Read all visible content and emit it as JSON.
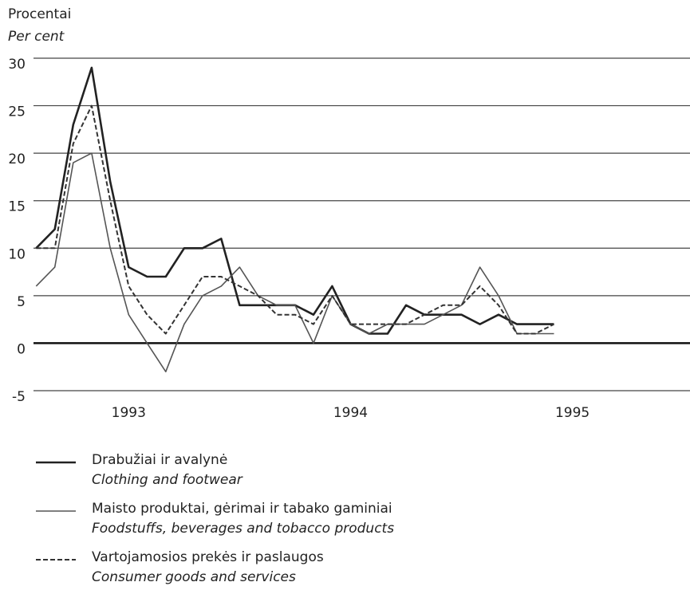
{
  "chart_data": {
    "type": "line",
    "y_label": "Procentai",
    "y_label_en": "Per cent",
    "x": [
      1992.583,
      1992.667,
      1992.75,
      1992.833,
      1992.917,
      1993.0,
      1993.083,
      1993.167,
      1993.25,
      1993.333,
      1993.417,
      1993.5,
      1993.583,
      1993.667,
      1993.75,
      1993.833,
      1993.917,
      1994.0,
      1994.083,
      1994.167,
      1994.25,
      1994.333,
      1994.417,
      1994.5,
      1994.583,
      1994.667,
      1994.75,
      1994.833,
      1994.917
    ],
    "series": [
      {
        "name": "Drabužiai ir avalynė",
        "name_en": "Clothing and footwear",
        "color": "#222222",
        "style": "thick",
        "values": [
          10,
          12,
          23,
          29,
          17,
          8,
          7,
          7,
          10,
          10,
          11,
          4,
          4,
          4,
          4,
          3,
          6,
          2,
          1,
          1,
          4,
          3,
          3,
          3,
          2,
          3,
          2,
          2,
          2
        ]
      },
      {
        "name": "Maisto produktai, gėrimai ir tabako gaminiai",
        "name_en": "Foodstuffs, beverages and tobacco products",
        "color": "#555555",
        "style": "thin",
        "values": [
          6,
          8,
          19,
          20,
          10,
          3,
          0,
          -3,
          2,
          5,
          6,
          8,
          5,
          4,
          4,
          0,
          5,
          2,
          1,
          2,
          2,
          2,
          3,
          4,
          8,
          5,
          1,
          1,
          1
        ]
      },
      {
        "name": "Vartojamosios prekės ir paslaugos",
        "name_en": "Consumer goods and services",
        "color": "#333333",
        "style": "dashed",
        "values": [
          10,
          10,
          21,
          25,
          15,
          6,
          3,
          1,
          4,
          7,
          7,
          6,
          5,
          3,
          3,
          2,
          5,
          2,
          2,
          2,
          2,
          3,
          4,
          4,
          6,
          4,
          1,
          1,
          2
        ]
      }
    ],
    "xlim": [
      1992.42,
      1995.53
    ],
    "xticks": [
      1993,
      1994,
      1995
    ],
    "ylim": [
      -5,
      30
    ],
    "yticks": [
      -5,
      0,
      5,
      10,
      15,
      20,
      25,
      30
    ],
    "grid": true
  }
}
